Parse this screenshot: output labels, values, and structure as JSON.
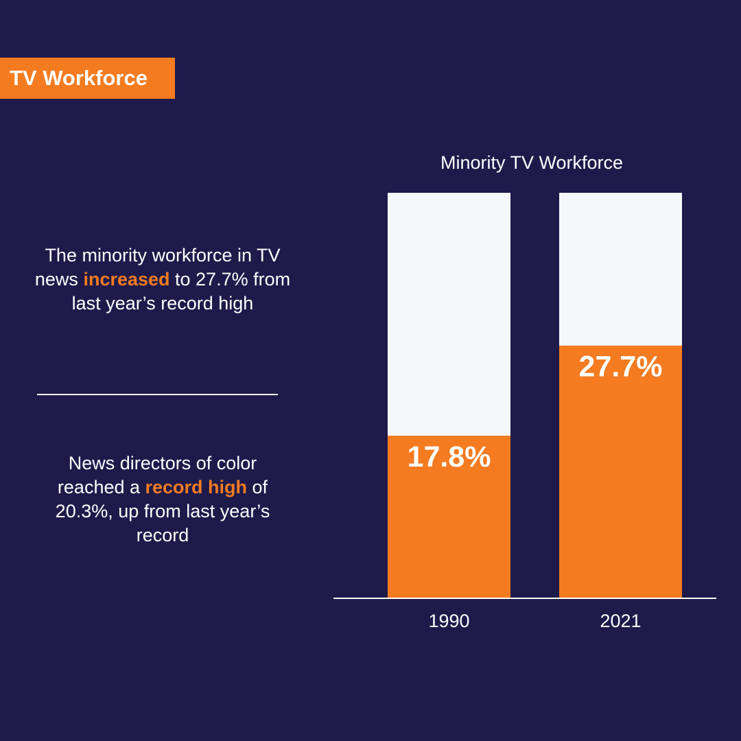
{
  "tag": {
    "label": "TV Workforce"
  },
  "colors": {
    "background": "#1e1b4b",
    "accent": "#f47b20",
    "bar_track": "#f6f7f9",
    "text": "#ffffff"
  },
  "notes": [
    {
      "before": "The minority workforce in TV news ",
      "highlight": "increased",
      "after": " to 27.7% from last year’s record high"
    },
    {
      "before": "News directors of color reached a ",
      "highlight": "record high",
      "after": " of 20.3%, up from last year’s record"
    }
  ],
  "chart_data": {
    "type": "bar",
    "title": "Minority TV Workforce",
    "categories": [
      "1990",
      "2021"
    ],
    "values": [
      17.8,
      27.7
    ],
    "value_labels": [
      "17.8%",
      "27.7%"
    ],
    "xlabel": "",
    "ylabel": "",
    "ylim": [
      0,
      44.5
    ],
    "grid": false,
    "legend": "none"
  }
}
